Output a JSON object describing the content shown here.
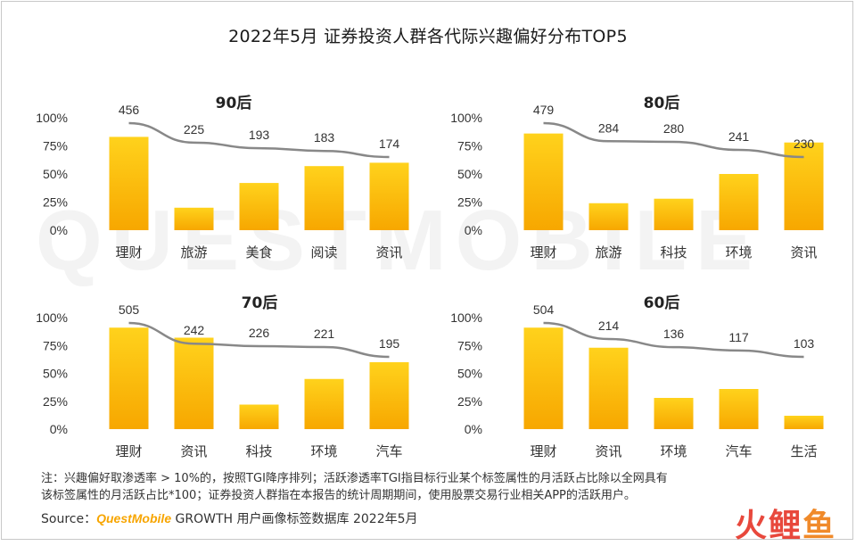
{
  "title": "2022年5月 证券投资人群各代际兴趣偏好分布TOP5",
  "watermark": "QUESTMOBILE",
  "footer": {
    "note_line1": "注：兴趣偏好取渗透率 > 10%的，按照TGI降序排列；活跃渗透率TGI指目标行业某个标签属性的月活跃占比除以全网具有",
    "note_line2": "该标签属性的月活跃占比*100；证券投资人群指在本报告的统计周期期间，使用股票交易行业相关APP的活跃用户。",
    "source_label": "Source：",
    "source_brand": "QuestMobile",
    "source_text": " GROWTH 用户画像标签数据库 2022年5月"
  },
  "logo": [
    "火",
    "鲤",
    "鱼"
  ],
  "colors": {
    "bar_top": "#ffd21c",
    "bar_bottom": "#f7a700",
    "line": "#888888"
  },
  "chart_data": [
    {
      "type": "bar",
      "title": "90后",
      "categories": [
        "理财",
        "旅游",
        "美食",
        "阅读",
        "资讯"
      ],
      "values": [
        83,
        20,
        42,
        57,
        60
      ],
      "line_values": [
        456,
        225,
        193,
        183,
        174
      ],
      "yticks": [
        "100%",
        "75%",
        "50%",
        "25%",
        "0%"
      ],
      "ylim": [
        0,
        100
      ]
    },
    {
      "type": "bar",
      "title": "80后",
      "categories": [
        "理财",
        "旅游",
        "科技",
        "环境",
        "资讯"
      ],
      "values": [
        86,
        24,
        28,
        50,
        78
      ],
      "line_values": [
        479,
        284,
        280,
        241,
        230
      ],
      "yticks": [
        "100%",
        "75%",
        "50%",
        "25%",
        "0%"
      ],
      "ylim": [
        0,
        100
      ]
    },
    {
      "type": "bar",
      "title": "70后",
      "categories": [
        "理财",
        "资讯",
        "科技",
        "环境",
        "汽车"
      ],
      "values": [
        91,
        82,
        22,
        45,
        60
      ],
      "line_values": [
        505,
        242,
        226,
        221,
        195
      ],
      "yticks": [
        "100%",
        "75%",
        "50%",
        "25%",
        "0%"
      ],
      "ylim": [
        0,
        100
      ]
    },
    {
      "type": "bar",
      "title": "60后",
      "categories": [
        "理财",
        "资讯",
        "环境",
        "汽车",
        "生活"
      ],
      "values": [
        91,
        73,
        28,
        36,
        12
      ],
      "line_values": [
        504,
        214,
        136,
        117,
        103
      ],
      "yticks": [
        "100%",
        "75%",
        "50%",
        "25%",
        "0%"
      ],
      "ylim": [
        0,
        100
      ]
    }
  ]
}
